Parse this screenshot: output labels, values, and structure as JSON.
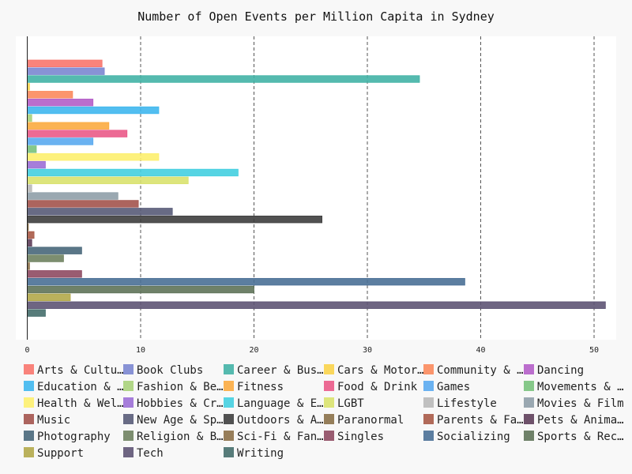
{
  "chart_data": {
    "type": "bar",
    "orientation": "horizontal",
    "title": "Number of Open Events per Million Capita in Sydney",
    "xlabel": "",
    "ylabel": "",
    "xlim": [
      0,
      51
    ],
    "xticks": [
      "0",
      "10",
      "20",
      "30",
      "40",
      "50"
    ],
    "grid": "vertical dashed",
    "legend_position": "bottom",
    "series": [
      {
        "name": "Arts & Culture",
        "legend_label": "Arts & Cultu…",
        "value": 6.6,
        "color": "#f8766d"
      },
      {
        "name": "Book Clubs",
        "legend_label": "Book Clubs",
        "value": 6.8,
        "color": "#7b86d0"
      },
      {
        "name": "Career & Business",
        "legend_label": "Career & Bus…",
        "value": 34.6,
        "color": "#42b3a6"
      },
      {
        "name": "Cars & Motorcycles",
        "legend_label": "Cars & Motor…",
        "value": 0.2,
        "color": "#f9d34a"
      },
      {
        "name": "Community & Environment",
        "legend_label": "Community & …",
        "value": 4.0,
        "color": "#fb8a5c"
      },
      {
        "name": "Dancing",
        "legend_label": "Dancing",
        "value": 5.8,
        "color": "#b45ec8"
      },
      {
        "name": "Education & Learning",
        "legend_label": "Education & …",
        "value": 11.6,
        "color": "#3fb7ee"
      },
      {
        "name": "Fashion & Beauty",
        "legend_label": "Fashion & Be…",
        "value": 0.4,
        "color": "#a8d27a"
      },
      {
        "name": "Fitness",
        "legend_label": "Fitness",
        "value": 7.2,
        "color": "#fbab40"
      },
      {
        "name": "Food & Drink",
        "legend_label": "Food & Drink",
        "value": 8.8,
        "color": "#ea5a88"
      },
      {
        "name": "Games",
        "legend_label": "Games",
        "value": 5.8,
        "color": "#5aaaf0"
      },
      {
        "name": "Movements & Politics",
        "legend_label": "Movements & …",
        "value": 0.8,
        "color": "#79c27c"
      },
      {
        "name": "Health & Wellbeing",
        "legend_label": "Health & Wel…",
        "value": 11.6,
        "color": "#fdef6f"
      },
      {
        "name": "Hobbies & Crafts",
        "legend_label": "Hobbies & Cr…",
        "value": 1.6,
        "color": "#9c6fd6"
      },
      {
        "name": "Language & Ethnic Identity",
        "legend_label": "Language & E…",
        "value": 18.6,
        "color": "#44cfe0"
      },
      {
        "name": "LGBT",
        "legend_label": "LGBT",
        "value": 14.2,
        "color": "#d9e26e"
      },
      {
        "name": "Lifestyle",
        "legend_label": "Lifestyle",
        "value": 0.4,
        "color": "#b9b9b9"
      },
      {
        "name": "Movies & Film",
        "legend_label": "Movies & Film",
        "value": 8.0,
        "color": "#8f9fa8"
      },
      {
        "name": "Music",
        "legend_label": "Music",
        "value": 9.8,
        "color": "#a3534d"
      },
      {
        "name": "New Age & Spirituality",
        "legend_label": "New Age & Sp…",
        "value": 12.8,
        "color": "#585b78"
      },
      {
        "name": "Outdoors & Adventure",
        "legend_label": "Outdoors & A…",
        "value": 26.0,
        "color": "#3e3e3e"
      },
      {
        "name": "Paranormal",
        "legend_label": "Paranormal",
        "value": 0.1,
        "color": "#8a7048"
      },
      {
        "name": "Parents & Family",
        "legend_label": "Parents & Fa…",
        "value": 0.6,
        "color": "#a85a47"
      },
      {
        "name": "Pets & Animals",
        "legend_label": "Pets & Anima…",
        "value": 0.4,
        "color": "#5e3e5a"
      },
      {
        "name": "Photography",
        "legend_label": "Photography",
        "value": 4.8,
        "color": "#48677a"
      },
      {
        "name": "Religion & Beliefs",
        "legend_label": "Religion & B…",
        "value": 3.2,
        "color": "#6f8260"
      },
      {
        "name": "Sci-Fi & Fantasy",
        "legend_label": "Sci-Fi & Fan…",
        "value": 0.2,
        "color": "#8c7048"
      },
      {
        "name": "Singles",
        "legend_label": "Singles",
        "value": 4.8,
        "color": "#8e4a62"
      },
      {
        "name": "Socializing",
        "legend_label": "Socializing",
        "value": 38.6,
        "color": "#4a7096"
      },
      {
        "name": "Sports & Recreation",
        "legend_label": "Sports & Rec…",
        "value": 20.0,
        "color": "#5f7359"
      },
      {
        "name": "Support",
        "legend_label": "Support",
        "value": 3.8,
        "color": "#b3a84a"
      },
      {
        "name": "Tech",
        "legend_label": "Tech",
        "value": 51.0,
        "color": "#5e5474"
      },
      {
        "name": "Writing",
        "legend_label": "Writing",
        "value": 1.6,
        "color": "#456e6c"
      }
    ]
  }
}
